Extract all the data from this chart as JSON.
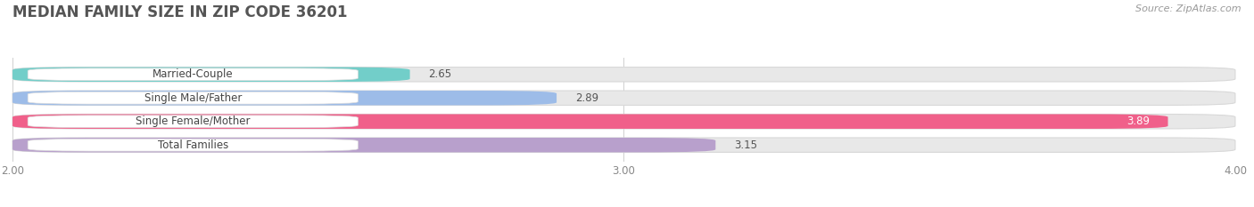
{
  "title": "MEDIAN FAMILY SIZE IN ZIP CODE 36201",
  "source": "Source: ZipAtlas.com",
  "categories": [
    "Married-Couple",
    "Single Male/Father",
    "Single Female/Mother",
    "Total Families"
  ],
  "values": [
    2.65,
    2.89,
    3.89,
    3.15
  ],
  "bar_colors": [
    "#72cec9",
    "#9dbce8",
    "#f0608a",
    "#b8a0cc"
  ],
  "bar_bg_color": "#e8e8e8",
  "bar_bg_border": "#d8d8d8",
  "xlim_data": [
    2.0,
    4.0
  ],
  "xticks": [
    2.0,
    3.0,
    4.0
  ],
  "xtick_labels": [
    "2.00",
    "3.00",
    "4.00"
  ],
  "background_color": "#ffffff",
  "title_fontsize": 12,
  "label_fontsize": 8.5,
  "value_fontsize": 8.5,
  "bar_height": 0.62,
  "label_bg_color": "#ffffff",
  "label_border_color": "#dddddd",
  "title_color": "#555555",
  "source_color": "#999999",
  "tick_color": "#aaaaaa",
  "grid_color": "#d0d0d0",
  "value_color_outside": "#555555",
  "value_color_inside": "#ffffff"
}
